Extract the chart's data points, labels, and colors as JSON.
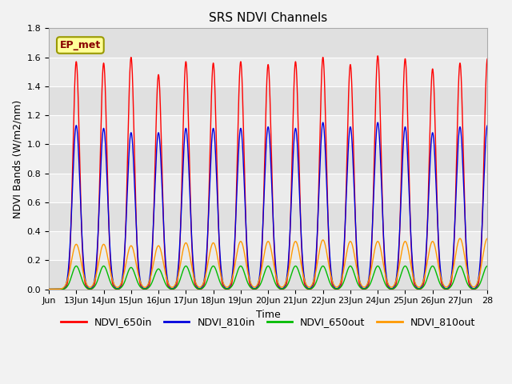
{
  "title": "SRS NDVI Channels",
  "xlabel": "Time",
  "ylabel": "NDVI Bands (W/m2/nm)",
  "ylim": [
    0.0,
    1.8
  ],
  "xlim_days": [
    12.0,
    28.0
  ],
  "background_color": "#f2f2f2",
  "plot_bg_color": "#ebebeb",
  "annotation_text": "EP_met",
  "annotation_bg": "#ffff99",
  "annotation_border": "#999900",
  "series": [
    {
      "name": "NDVI_650in",
      "color": "#ff0000",
      "amplitudes": [
        1.57,
        1.56,
        1.6,
        1.48,
        1.57,
        1.56,
        1.57,
        1.55,
        1.57,
        1.6,
        1.55,
        1.61,
        1.59,
        1.52,
        1.56,
        1.59
      ],
      "sigma": 0.12
    },
    {
      "name": "NDVI_810in",
      "color": "#0000dd",
      "amplitudes": [
        1.13,
        1.11,
        1.08,
        1.08,
        1.11,
        1.11,
        1.11,
        1.12,
        1.11,
        1.15,
        1.12,
        1.15,
        1.12,
        1.08,
        1.12,
        1.13
      ],
      "sigma": 0.14
    },
    {
      "name": "NDVI_650out",
      "color": "#00bb00",
      "amplitudes": [
        0.16,
        0.16,
        0.15,
        0.14,
        0.16,
        0.16,
        0.16,
        0.16,
        0.16,
        0.16,
        0.16,
        0.16,
        0.16,
        0.16,
        0.16,
        0.16
      ],
      "sigma": 0.16
    },
    {
      "name": "NDVI_810out",
      "color": "#ff9900",
      "amplitudes": [
        0.31,
        0.31,
        0.3,
        0.3,
        0.32,
        0.32,
        0.33,
        0.33,
        0.33,
        0.34,
        0.33,
        0.33,
        0.33,
        0.33,
        0.35,
        0.35
      ],
      "sigma": 0.18
    }
  ],
  "tick_labels": [
    "Jun",
    "13Jun",
    "14Jun",
    "15Jun",
    "16Jun",
    "17Jun",
    "18Jun",
    "19Jun",
    "20Jun",
    "21Jun",
    "22Jun",
    "23Jun",
    "24Jun",
    "25Jun",
    "26Jun",
    "27Jun",
    "28"
  ],
  "tick_positions": [
    12,
    13,
    14,
    15,
    16,
    17,
    18,
    19,
    20,
    21,
    22,
    23,
    24,
    25,
    26,
    27,
    28
  ],
  "yticks": [
    0.0,
    0.2,
    0.4,
    0.6,
    0.8,
    1.0,
    1.2,
    1.4,
    1.6,
    1.8
  ],
  "legend_colors": [
    "#ff0000",
    "#0000dd",
    "#00bb00",
    "#ff9900"
  ],
  "legend_labels": [
    "NDVI_650in",
    "NDVI_810in",
    "NDVI_650out",
    "NDVI_810out"
  ],
  "hband_colors": [
    "#e0e0e0",
    "#ebebeb"
  ],
  "grid_line_color": "#ffffff"
}
